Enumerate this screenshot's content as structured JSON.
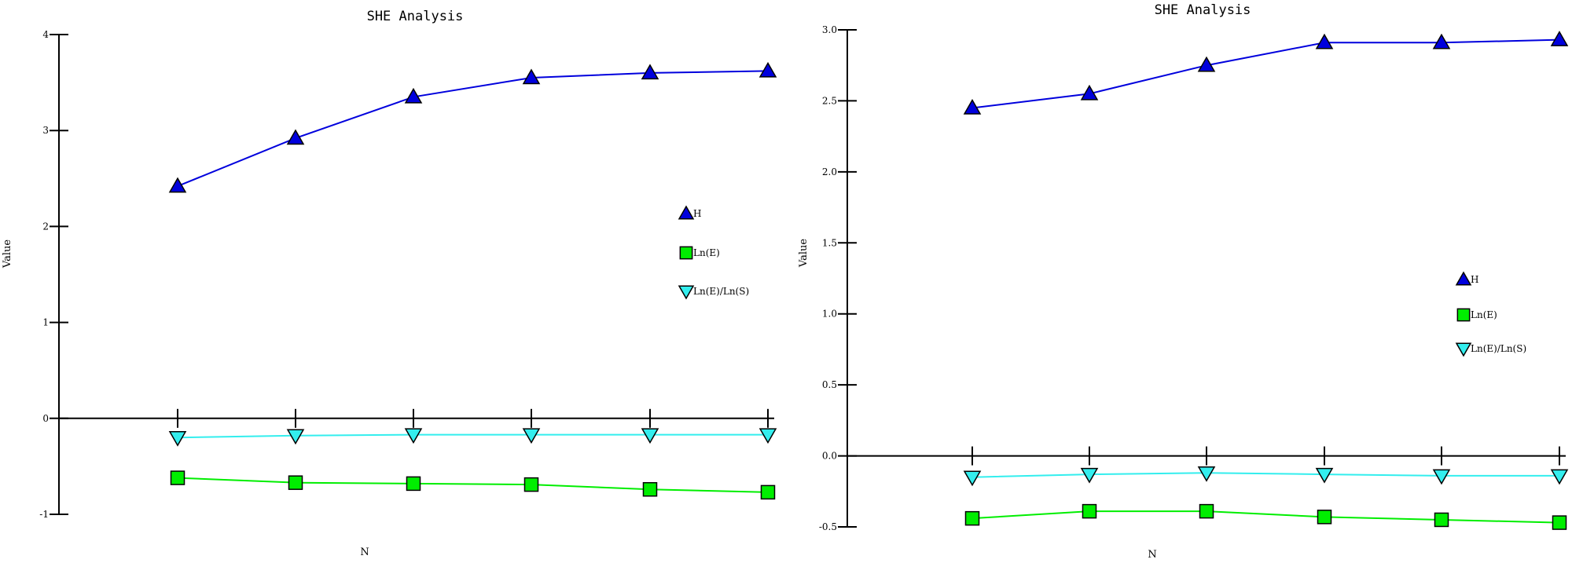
{
  "colors": {
    "H": "#0000dd",
    "LnE": "#00ee00",
    "LnELnS": "#33eeee",
    "axis": "#000000"
  },
  "chart_data": [
    {
      "type": "line",
      "title": "SHE Analysis",
      "xlabel": "N",
      "ylabel": "Value",
      "x": [
        1,
        2,
        3,
        4,
        5,
        6
      ],
      "ylim": [
        -1,
        4
      ],
      "yticks": [
        "4",
        "3",
        "2",
        "1",
        "0",
        "-1"
      ],
      "legend_position": "right",
      "series": [
        {
          "name": "H",
          "marker": "triangle-up",
          "values": [
            2.42,
            2.92,
            3.35,
            3.55,
            3.6,
            3.62
          ]
        },
        {
          "name": "Ln(E)",
          "marker": "square",
          "values": [
            -0.62,
            -0.67,
            -0.68,
            -0.69,
            -0.74,
            -0.77
          ]
        },
        {
          "name": "Ln(E)/Ln(S)",
          "marker": "triangle-down",
          "values": [
            -0.2,
            -0.18,
            -0.17,
            -0.17,
            -0.17,
            -0.17
          ]
        }
      ]
    },
    {
      "type": "line",
      "title": "SHE Analysis",
      "xlabel": "N",
      "ylabel": "Value",
      "x": [
        1,
        2,
        3,
        4,
        5,
        6
      ],
      "ylim": [
        -0.5,
        3.0
      ],
      "yticks": [
        "3.0",
        "2.5",
        "2.0",
        "1.5",
        "1.0",
        "0.5",
        "0.0",
        "-0.5"
      ],
      "legend_position": "right",
      "series": [
        {
          "name": "H",
          "marker": "triangle-up",
          "values": [
            2.45,
            2.55,
            2.75,
            2.91,
            2.91,
            2.93
          ]
        },
        {
          "name": "Ln(E)",
          "marker": "square",
          "values": [
            -0.44,
            -0.39,
            -0.39,
            -0.43,
            -0.45,
            -0.47
          ]
        },
        {
          "name": "Ln(E)/Ln(S)",
          "marker": "triangle-down",
          "values": [
            -0.15,
            -0.13,
            -0.12,
            -0.13,
            -0.14,
            -0.14
          ]
        }
      ]
    }
  ]
}
